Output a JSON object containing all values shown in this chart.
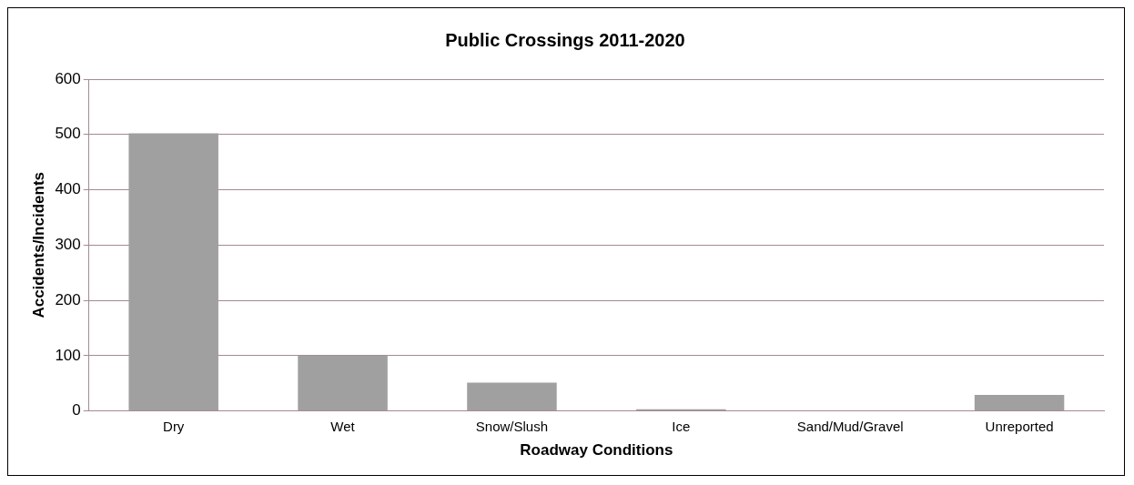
{
  "chart_data": {
    "type": "bar",
    "title": "Public Crossings 2011-2020",
    "xlabel": "Roadway Conditions",
    "ylabel": "Accidents/Incidents",
    "categories": [
      "Dry",
      "Wet",
      "Snow/Slush",
      "Ice",
      "Sand/Mud/Gravel",
      "Unreported"
    ],
    "values": [
      502,
      100,
      51,
      3,
      0,
      29
    ],
    "color": "#a0a0a0",
    "ylim": [
      0,
      600
    ],
    "yticks": [
      0,
      100,
      200,
      300,
      400,
      500,
      600
    ],
    "grid": "y",
    "legend": false
  }
}
